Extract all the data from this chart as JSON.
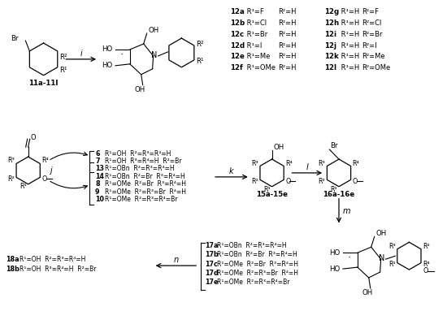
{
  "bg": "#ffffff",
  "fw": 5.5,
  "fh": 3.99,
  "dpi": 100,
  "rows12_left": [
    [
      "12a",
      "R¹=F",
      "R²=H"
    ],
    [
      "12b",
      "R¹=Cl",
      "R²=H"
    ],
    [
      "12c",
      "R¹=Br",
      "R²=H"
    ],
    [
      "12d",
      "R¹=I",
      "R²=H"
    ],
    [
      "12e",
      "R¹=Me",
      "R²=H"
    ],
    [
      "12f",
      "R¹=OMe",
      "R²=H"
    ]
  ],
  "rows12_right": [
    [
      "12g",
      "R¹=H",
      "R²=F"
    ],
    [
      "12h",
      "R¹=H",
      "R²=Cl"
    ],
    [
      "12i",
      "R¹=H",
      "R²=Br"
    ],
    [
      "12j",
      "R¹=H",
      "R²=I"
    ],
    [
      "12k",
      "R¹=H",
      "R²=Me"
    ],
    [
      "12l",
      "R¹=H",
      "R²=OMe"
    ]
  ],
  "mid_cpds": [
    [
      "6",
      "R¹=OH  R²=R³=R⁴=H"
    ],
    [
      "7",
      "R¹=OH  R³=R⁴=H  R²=Br"
    ],
    [
      "13",
      "R¹=OBn  R²=R³=R⁴=H"
    ],
    [
      "14",
      "R¹=OBn  R²=Br  R³=R⁴=H"
    ],
    [
      "8",
      "R¹=OMe  R²=Br  R³=R⁴=H"
    ],
    [
      "9",
      "R¹=OMe  R²=R³=Br  R⁴=H"
    ],
    [
      "10",
      "R¹=OMe  R²=R³=R⁴=Br"
    ]
  ],
  "cpds17": [
    [
      "17a",
      "R¹=OBn  R²=R³=R⁴=H"
    ],
    [
      "17b",
      "R¹=OBn  R²=Br  R³=R⁴=H"
    ],
    [
      "17c",
      "R¹=OMe  R²=Br  R³=R⁴=H"
    ],
    [
      "17d",
      "R¹=OMe  R²=R³=Br  R⁴=H"
    ],
    [
      "17e",
      "R¹=OMe  R²=R³=R⁴=Br"
    ]
  ],
  "cpds18": [
    [
      "18a",
      "R¹=OH  R²=R³=R⁴=H"
    ],
    [
      "18b",
      "R¹=OH  R³=R⁴=H  R²=Br"
    ]
  ]
}
